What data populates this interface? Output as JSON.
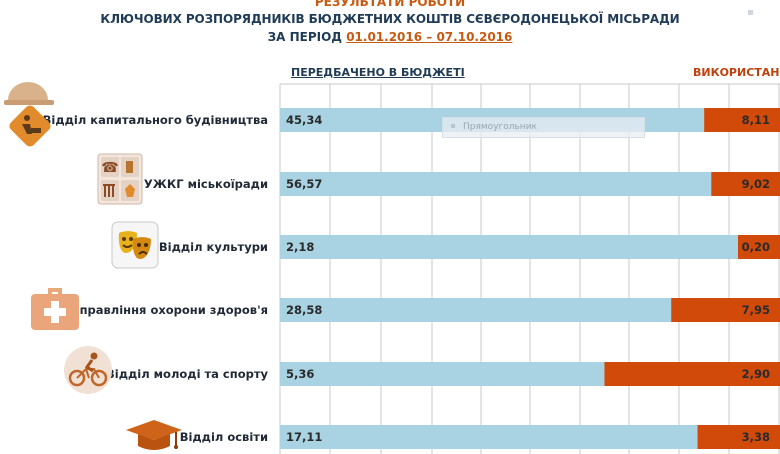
{
  "header": {
    "line0": "РЕЗУЛЬТАТИ РОБОТИ",
    "line1": "КЛЮЧОВИХ РОЗПОРЯДНИКІВ БЮДЖЕТНИХ КОШТІВ СЄВЄРОДОНЕЦЬКОЇ МІСЬРАДИ",
    "period_label": "ЗА ПЕРІОД",
    "period_dates": "01.01.2016 – 07.10.2016"
  },
  "tooltip": {
    "label": "Прямоугольник"
  },
  "colors": {
    "budget": "#a9d3e3",
    "used": "#d24a0a",
    "grid": "#c9c9c9",
    "label": "#1f2a36"
  },
  "icons": [
    "construction-worker-icon",
    "utilities-icon",
    "theater-masks-icon",
    "first-aid-kit-icon",
    "cyclist-icon",
    "graduation-cap-icon"
  ],
  "chart_data": {
    "type": "bar",
    "orientation": "horizontal",
    "stacked": true,
    "categories": [
      "Відділ капитального будівництва",
      "УЖКГ міськоїради",
      "Відділ культури",
      "Управління охорони здоров'я",
      "Відділ молоді та спорту",
      "Відділ освіти"
    ],
    "series": [
      {
        "name": "ПЕРЕДБАЧЕНО В БЮДЖЕТІ",
        "values": [
          45.34,
          56.57,
          2.18,
          28.58,
          5.36,
          17.11
        ],
        "labels": [
          "45,34",
          "56,57",
          "2,18",
          "28,58",
          "5,36",
          "17,11"
        ],
        "color": "#a9d3e3"
      },
      {
        "name": "ВИКОРИСТАНО",
        "values": [
          8.11,
          9.02,
          0.2,
          7.95,
          2.9,
          3.38
        ],
        "labels": [
          "8,11",
          "9,02",
          "0,20",
          "7,95",
          "2,90",
          "3,38"
        ],
        "color": "#d24a0a"
      }
    ],
    "grid": true,
    "legend": "top"
  }
}
